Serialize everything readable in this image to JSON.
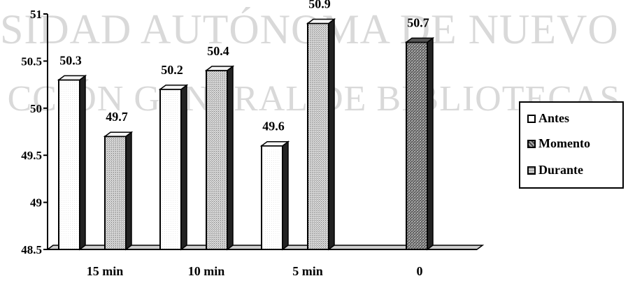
{
  "watermark": {
    "line1": "SIDAD AUTÓNOMA DE NUEVO LEÓN",
    "line2": "CCIÓN GENERAL DE BIBLIOTECAS"
  },
  "chart_data": {
    "type": "bar",
    "title": "",
    "xlabel": "",
    "ylabel": "",
    "categories": [
      "15 min",
      "10 min",
      "5 min",
      "0"
    ],
    "ylim": [
      48.5,
      51
    ],
    "yticks": [
      "48.5",
      "49",
      "49.5",
      "50",
      "50.5",
      "51"
    ],
    "series": [
      {
        "name": "Antes",
        "values": [
          50.3,
          50.2,
          49.6,
          null
        ],
        "labels": [
          "50.3",
          "50.2",
          "49.6",
          ""
        ],
        "color": "#ffffff"
      },
      {
        "name": "Momento",
        "values": [
          null,
          null,
          null,
          50.7
        ],
        "labels": [
          "",
          "",
          "",
          "50.7"
        ],
        "color": "#666666"
      },
      {
        "name": "Durante",
        "values": [
          49.7,
          50.4,
          50.9,
          null
        ],
        "labels": [
          "49.7",
          "50.4",
          "50.9",
          ""
        ],
        "color": "#c8c8c8"
      }
    ],
    "legend_position": "right",
    "grid": false
  }
}
